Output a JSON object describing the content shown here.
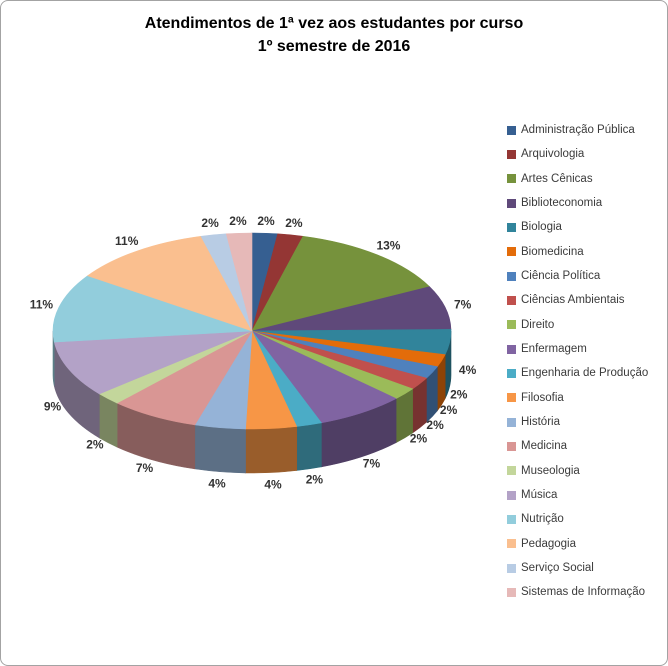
{
  "title": {
    "line1": "Atendimentos de 1ª vez aos estudantes por curso",
    "line2": "1º semestre de 2016"
  },
  "chart_data": {
    "type": "pie",
    "title": "Atendimentos de 1ª vez aos estudantes por curso",
    "subtitle": "1º semestre de 2016",
    "effect": "3d",
    "legend_position": "right",
    "labels": "outside-percent",
    "unit": "%",
    "slices": [
      {
        "label": "Administração Pública",
        "value": 2,
        "color": "#365F91"
      },
      {
        "label": "Arquivologia",
        "value": 2,
        "color": "#943634"
      },
      {
        "label": "Artes Cênicas",
        "value": 13,
        "color": "#76923C"
      },
      {
        "label": "Biblioteconomia",
        "value": 7,
        "color": "#5F497A"
      },
      {
        "label": "Biologia",
        "value": 4,
        "color": "#31849B"
      },
      {
        "label": "Biomedicina",
        "value": 2,
        "color": "#E36C0A"
      },
      {
        "label": "Ciência Política",
        "value": 2,
        "color": "#4F81BD"
      },
      {
        "label": "Ciências Ambientais",
        "value": 2,
        "color": "#C0504D"
      },
      {
        "label": "Direito",
        "value": 2,
        "color": "#9BBB59"
      },
      {
        "label": "Enfermagem",
        "value": 7,
        "color": "#8064A2"
      },
      {
        "label": "Engenharia de Produção",
        "value": 2,
        "color": "#4BACC6"
      },
      {
        "label": "Filosofia",
        "value": 4,
        "color": "#F79646"
      },
      {
        "label": "História",
        "value": 4,
        "color": "#95B3D7"
      },
      {
        "label": "Medicina",
        "value": 7,
        "color": "#D99694"
      },
      {
        "label": "Museologia",
        "value": 2,
        "color": "#C3D69B"
      },
      {
        "label": "Música",
        "value": 9,
        "color": "#B3A2C7"
      },
      {
        "label": "Nutrição",
        "value": 11,
        "color": "#92CDDC"
      },
      {
        "label": "Pedagogia",
        "value": 11,
        "color": "#FABF8F"
      },
      {
        "label": "Serviço Social",
        "value": 2,
        "color": "#B8CCE4"
      },
      {
        "label": "Sistemas de Informação",
        "value": 2,
        "color": "#E6B9B8"
      }
    ]
  }
}
